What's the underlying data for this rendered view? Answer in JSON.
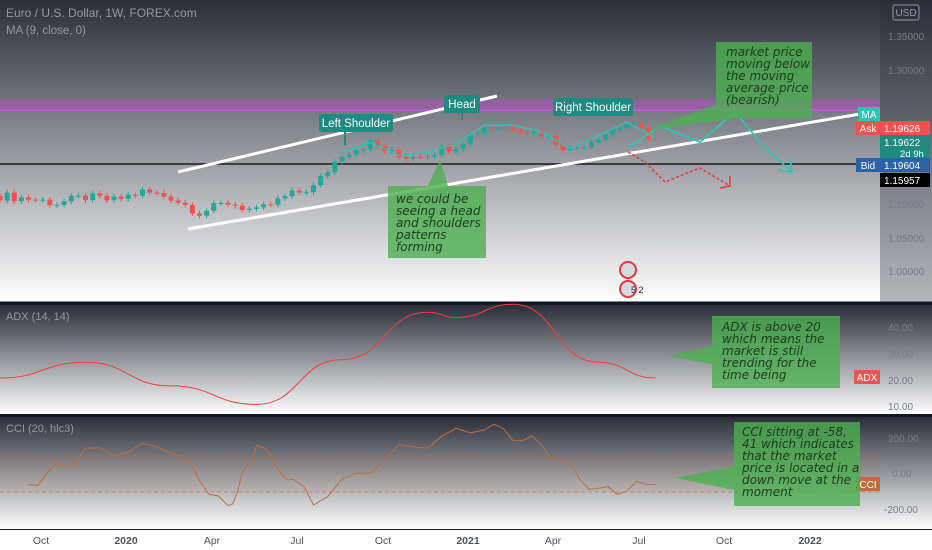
{
  "header": {
    "symbol": "Euro / U.S. Dollar, 1W, FOREX.com",
    "indicator": "MA (9, close, 0)",
    "currency_badge": "USD"
  },
  "price_axis": {
    "ticks": [
      "1.35000",
      "1.30000",
      "1.10000",
      "1.05000",
      "1.00000"
    ],
    "ma_tag": "MA",
    "ask_tag": "Ask",
    "ask_price": "1.19626",
    "last_price": "1.19622",
    "countdown": "2d 9h",
    "bid_tag": "Bid",
    "bid_price": "1.19604",
    "line_price": "1.15957"
  },
  "pattern_labels": {
    "left_shoulder": "Left Shoulder",
    "head": "Head",
    "right_shoulder": "Right Shoulder"
  },
  "notes": {
    "market_price": [
      "market price",
      "moving below",
      "the moving",
      "average price",
      "(bearish)"
    ],
    "head_shoulders": [
      "we could be",
      "seeing a head",
      "and shoulders",
      "patterns",
      "forming"
    ],
    "adx": [
      "ADX is above 20",
      "which means the",
      "market is still",
      "trending for the",
      "time being"
    ],
    "cci": [
      "CCI sitting at -58,",
      "41 which indicates",
      "that the market",
      "price is located in a",
      "down move at the",
      "moment"
    ]
  },
  "event_badge": "5 2",
  "adx_panel": {
    "title": "ADX (14, 14)",
    "ticks": [
      "40.00",
      "30.00",
      "20.00",
      "10.00"
    ],
    "tag": "ADX"
  },
  "cci_panel": {
    "title": "CCI (20, hlc3)",
    "ticks": [
      "200.00",
      "0.00",
      "-200.00"
    ],
    "tag": "CCI"
  },
  "time_axis": [
    "Oct",
    "2020",
    "Apr",
    "Jul",
    "Oct",
    "2021",
    "Apr",
    "Jul",
    "Oct",
    "2022"
  ],
  "colors": {
    "background": "#1e222d",
    "up_candle": "#26a69a",
    "down_candle": "#ef5350",
    "ma_line": "#2ec4b6",
    "adx_line": "#f23d3d",
    "cci_line": "#c26b3c",
    "note_fill": "#4caf50",
    "resistance_zone": "#b14cc0"
  },
  "chart_data": {
    "type": "candlestick",
    "title": "Euro / U.S. Dollar, 1W, FOREX.com",
    "price": {
      "x": [
        "2019-07",
        "2019-08",
        "2019-09",
        "2019-10",
        "2019-11",
        "2019-12",
        "2020-01",
        "2020-02",
        "2020-03",
        "2020-04",
        "2020-05",
        "2020-06",
        "2020-07",
        "2020-08",
        "2020-09",
        "2020-10",
        "2020-11",
        "2020-12",
        "2021-01",
        "2021-02",
        "2021-03",
        "2021-04",
        "2021-05",
        "2021-06"
      ],
      "close": [
        1.112,
        1.108,
        1.101,
        1.11,
        1.105,
        1.118,
        1.11,
        1.087,
        1.102,
        1.088,
        1.11,
        1.125,
        1.175,
        1.19,
        1.17,
        1.175,
        1.188,
        1.215,
        1.215,
        1.205,
        1.18,
        1.2,
        1.22,
        1.196
      ]
    },
    "forecast_path": [
      {
        "date": "2021-06",
        "value": 1.196
      },
      {
        "date": "2021-08",
        "value": 1.22
      },
      {
        "date": "2021-10",
        "value": 1.25
      },
      {
        "date": "2021-12",
        "value": 1.16
      }
    ],
    "adx": {
      "x": [
        "2019-07",
        "2019-10",
        "2020-01",
        "2020-04",
        "2020-07",
        "2020-10",
        "2020-11",
        "2021-01",
        "2021-04",
        "2021-06"
      ],
      "values": [
        21,
        27,
        18,
        11,
        28,
        46,
        44,
        49,
        27,
        21
      ],
      "last_label": "ADX"
    },
    "cci": {
      "x": [
        "2019-08",
        "2019-10",
        "2020-01",
        "2020-03",
        "2020-04",
        "2020-06",
        "2020-09",
        "2020-12",
        "2021-02",
        "2021-04",
        "2021-06"
      ],
      "values": [
        -60,
        120,
        150,
        -200,
        160,
        -150,
        130,
        270,
        160,
        -100,
        -58
      ],
      "last_label": "CCI"
    }
  }
}
